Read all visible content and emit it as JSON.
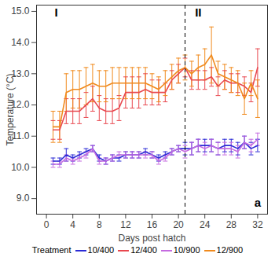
{
  "chart_data": {
    "type": "line",
    "x_label": "Days post hatch",
    "y_label": "Temperature (°C)",
    "xlim": [
      -1.5,
      33.5
    ],
    "xticks": [
      0,
      4,
      8,
      12,
      16,
      20,
      24,
      28,
      32
    ],
    "ylim": [
      8.5,
      15.2
    ],
    "yticks": [
      9,
      10,
      11,
      12,
      13,
      14,
      15
    ],
    "grid": false,
    "legend": "bottom",
    "legend_title": "Treatment",
    "x": [
      1,
      2,
      3,
      4,
      5,
      6,
      7,
      8,
      9,
      10,
      11,
      12,
      13,
      14,
      15,
      16,
      17,
      18,
      19,
      20,
      21,
      22,
      23,
      24,
      25,
      26,
      27,
      28,
      29,
      30,
      31,
      32
    ],
    "series": [
      {
        "name": "10/400",
        "color": "#2b2bd6",
        "values": [
          10.2,
          10.2,
          10.4,
          10.3,
          10.4,
          10.5,
          10.6,
          10.3,
          10.2,
          10.3,
          10.3,
          10.4,
          10.4,
          10.4,
          10.5,
          10.4,
          10.3,
          10.4,
          10.5,
          10.6,
          10.6,
          10.6,
          10.7,
          10.7,
          10.7,
          10.6,
          10.7,
          10.7,
          10.6,
          10.8,
          10.6,
          10.7
        ],
        "errors": [
          0.1,
          0.1,
          0.2,
          0.1,
          0.1,
          0.1,
          0.1,
          0.1,
          0.1,
          0.1,
          0.1,
          0.1,
          0.1,
          0.1,
          0.1,
          0.1,
          0.1,
          0.1,
          0.1,
          0.1,
          0.2,
          0.2,
          0.2,
          0.2,
          0.2,
          0.2,
          0.2,
          0.2,
          0.2,
          0.2,
          0.2,
          0.2
        ]
      },
      {
        "name": "12/400",
        "color": "#e8474e",
        "values": [
          11.2,
          11.2,
          11.8,
          11.8,
          11.8,
          12.0,
          12.2,
          11.9,
          11.8,
          11.8,
          11.9,
          12.4,
          12.4,
          12.4,
          12.5,
          12.4,
          12.4,
          12.4,
          12.8,
          13.0,
          13.2,
          12.8,
          12.8,
          12.8,
          12.9,
          12.6,
          12.8,
          12.7,
          12.7,
          12.6,
          12.4,
          13.2
        ],
        "errors": [
          0.3,
          0.3,
          0.4,
          0.4,
          0.4,
          0.4,
          0.4,
          0.4,
          0.4,
          0.4,
          0.4,
          0.5,
          0.5,
          0.5,
          0.5,
          0.4,
          0.4,
          0.3,
          0.3,
          0.3,
          0.3,
          0.3,
          0.3,
          0.3,
          0.3,
          0.3,
          0.3,
          0.3,
          0.3,
          0.3,
          0.3,
          0.6
        ]
      },
      {
        "name": "10/900",
        "color": "#c56be0",
        "values": [
          10.1,
          10.1,
          10.3,
          10.2,
          10.3,
          10.4,
          10.6,
          10.2,
          10.2,
          10.3,
          10.4,
          10.4,
          10.4,
          10.4,
          10.4,
          10.4,
          10.2,
          10.3,
          10.5,
          10.6,
          10.5,
          10.6,
          10.7,
          10.6,
          10.7,
          10.6,
          10.6,
          10.6,
          10.5,
          10.8,
          10.7,
          10.9
        ],
        "errors": [
          0.1,
          0.1,
          0.1,
          0.1,
          0.1,
          0.1,
          0.1,
          0.1,
          0.1,
          0.1,
          0.1,
          0.1,
          0.1,
          0.1,
          0.1,
          0.1,
          0.1,
          0.1,
          0.1,
          0.1,
          0.2,
          0.2,
          0.2,
          0.2,
          0.2,
          0.2,
          0.2,
          0.2,
          0.2,
          0.2,
          0.2,
          0.2
        ]
      },
      {
        "name": "12/900",
        "color": "#f08a1d",
        "values": [
          11.3,
          11.3,
          12.4,
          12.5,
          12.5,
          12.6,
          12.7,
          12.6,
          12.6,
          12.7,
          12.7,
          12.7,
          12.7,
          12.7,
          12.7,
          12.6,
          12.5,
          12.7,
          12.9,
          13.1,
          13.2,
          13.0,
          13.2,
          13.3,
          13.6,
          13.0,
          12.9,
          12.8,
          12.7,
          12.2,
          12.7,
          12.2
        ],
        "errors": [
          0.5,
          0.5,
          0.6,
          0.6,
          0.6,
          0.6,
          0.6,
          0.5,
          0.5,
          0.5,
          0.5,
          0.5,
          0.5,
          0.5,
          0.5,
          0.4,
          0.4,
          0.4,
          0.4,
          0.4,
          0.4,
          0.4,
          0.4,
          0.5,
          0.9,
          0.4,
          0.4,
          0.4,
          0.4,
          0.5,
          0.4,
          0.6
        ]
      }
    ],
    "vline": {
      "x": 21,
      "line_style": "dashed"
    },
    "annotations": [
      {
        "text": "I",
        "x": 1.5,
        "y": 14.95
      },
      {
        "text": "II",
        "x": 23,
        "y": 14.95
      },
      {
        "text": "a",
        "x": 32,
        "y": 8.85
      }
    ]
  }
}
